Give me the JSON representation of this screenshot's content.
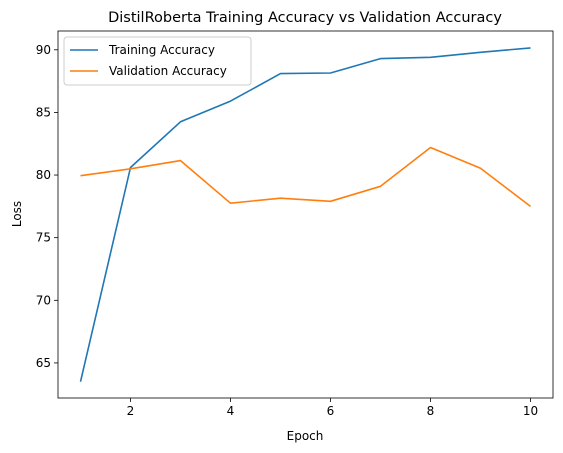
{
  "chart_data": {
    "type": "line",
    "title": "DistilRoberta Training Accuracy vs Validation Accuracy",
    "xlabel": "Epoch",
    "ylabel": "Loss",
    "x": [
      1,
      2,
      3,
      4,
      5,
      6,
      7,
      8,
      9,
      10
    ],
    "xlim": [
      0.55,
      10.45
    ],
    "ylim": [
      62.2,
      91.5
    ],
    "xticks": [
      2,
      4,
      6,
      8,
      10
    ],
    "yticks": [
      65,
      70,
      75,
      80,
      85,
      90
    ],
    "grid": false,
    "legend_position": "top-left",
    "series": [
      {
        "name": "Training Accuracy",
        "color": "#1f77b4",
        "values": [
          63.5,
          80.6,
          84.25,
          85.9,
          88.1,
          88.15,
          89.3,
          89.4,
          89.8,
          90.15
        ]
      },
      {
        "name": "Validation Accuracy",
        "color": "#ff7f0e",
        "values": [
          79.95,
          80.5,
          81.15,
          77.75,
          78.15,
          77.9,
          79.1,
          82.2,
          80.55,
          77.5
        ]
      }
    ]
  }
}
